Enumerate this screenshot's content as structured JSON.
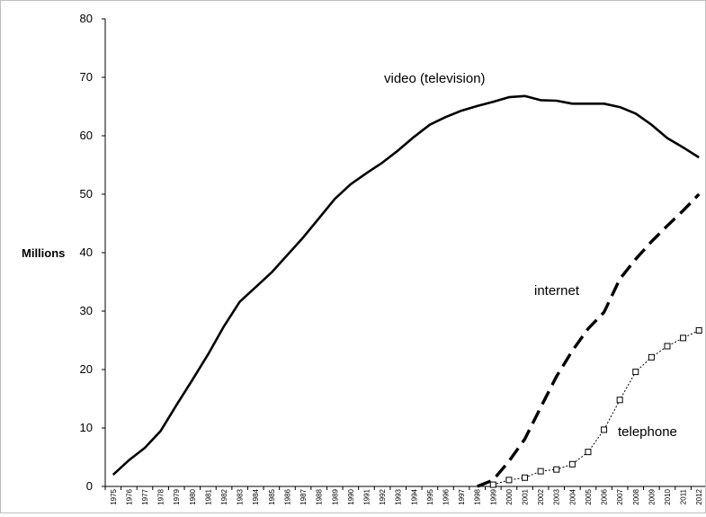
{
  "chart_data": {
    "type": "line",
    "title": "",
    "xlabel": "",
    "ylabel": "Millions",
    "ylim": [
      0,
      80
    ],
    "yticks": [
      0,
      10,
      20,
      30,
      40,
      50,
      60,
      70,
      80
    ],
    "categories": [
      "1975",
      "1976",
      "1977",
      "1978",
      "1979",
      "1980",
      "1981",
      "1982",
      "1983",
      "1984",
      "1985",
      "1986",
      "1987",
      "1988",
      "1989",
      "1990",
      "1991",
      "1992",
      "1993",
      "1994",
      "1995",
      "1996",
      "1997",
      "1998",
      "1999",
      "2000",
      "2001",
      "2002",
      "2003",
      "2004",
      "2005",
      "2006",
      "2007",
      "2008",
      "2009",
      "2010",
      "2011",
      "2012"
    ],
    "grid": false,
    "legend": "none",
    "series": [
      {
        "name": "video (television)",
        "style": "solid",
        "color": "#000000",
        "values": [
          2.0,
          4.5,
          6.6,
          9.5,
          13.9,
          18.2,
          22.6,
          27.4,
          31.6,
          34.1,
          36.6,
          39.6,
          42.6,
          45.9,
          49.2,
          51.7,
          53.6,
          55.4,
          57.5,
          59.8,
          61.9,
          63.2,
          64.3,
          65.1,
          65.8,
          66.6,
          66.8,
          66.1,
          66.0,
          65.5,
          65.5,
          65.5,
          64.9,
          63.8,
          61.9,
          59.6,
          58.0,
          56.3
        ]
      },
      {
        "name": "internet",
        "style": "dashed",
        "color": "#000000",
        "values": [
          null,
          null,
          null,
          null,
          null,
          null,
          null,
          null,
          null,
          null,
          null,
          null,
          null,
          null,
          null,
          null,
          null,
          null,
          null,
          null,
          null,
          null,
          null,
          0.0,
          1.1,
          4.3,
          8.1,
          13.5,
          18.8,
          23.2,
          27.0,
          29.8,
          35.5,
          38.9,
          41.9,
          44.6,
          47.2,
          50.0
        ]
      },
      {
        "name": "telephone",
        "style": "dotted-markers",
        "color": "#000000",
        "values": [
          null,
          null,
          null,
          null,
          null,
          null,
          null,
          null,
          null,
          null,
          null,
          null,
          null,
          null,
          null,
          null,
          null,
          null,
          null,
          null,
          null,
          null,
          null,
          null,
          0.3,
          1.1,
          1.5,
          2.6,
          2.9,
          3.8,
          5.9,
          9.7,
          14.8,
          19.6,
          22.1,
          24.0,
          25.4,
          26.7
        ]
      }
    ]
  }
}
